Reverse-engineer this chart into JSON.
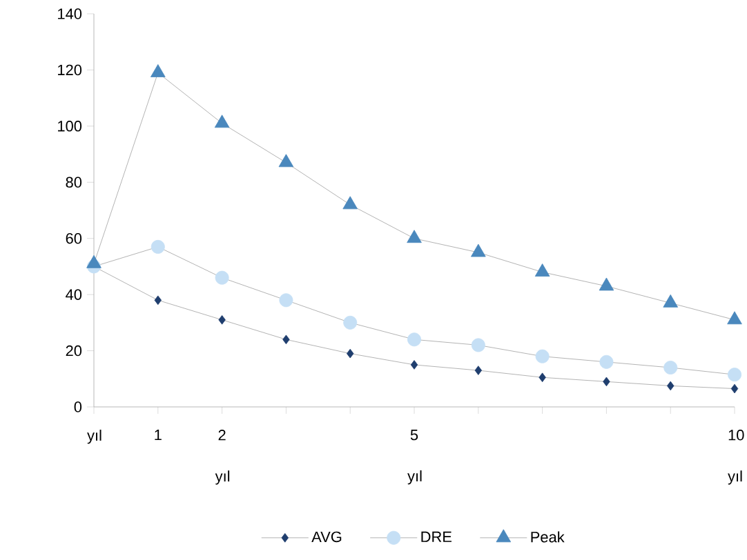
{
  "chart_data": {
    "type": "line",
    "categories": [
      "yıl",
      "1",
      "2 yıl",
      null,
      null,
      "5 yıl",
      null,
      null,
      null,
      null,
      "10 yıl"
    ],
    "series": [
      {
        "name": "AVG",
        "color": "#1f3e6e",
        "marker": "diamond",
        "values": [
          50,
          38,
          31,
          24,
          19,
          15,
          13,
          10.5,
          9,
          7.5,
          6.5
        ]
      },
      {
        "name": "DRE",
        "color": "#c5dff5",
        "marker": "circle",
        "values": [
          50,
          57,
          46,
          38,
          30,
          24,
          22,
          18,
          16,
          14,
          11.5
        ]
      },
      {
        "name": "Peak",
        "color": "#4a88bd",
        "marker": "triangle",
        "values": [
          51,
          119,
          101,
          87,
          72,
          60,
          55,
          48,
          43,
          37,
          31
        ]
      }
    ],
    "ylim": [
      0,
      140
    ],
    "yticks": [
      0,
      20,
      40,
      60,
      80,
      100,
      120,
      140
    ],
    "grid": false,
    "legend": "bottom",
    "line_style": "solid"
  }
}
